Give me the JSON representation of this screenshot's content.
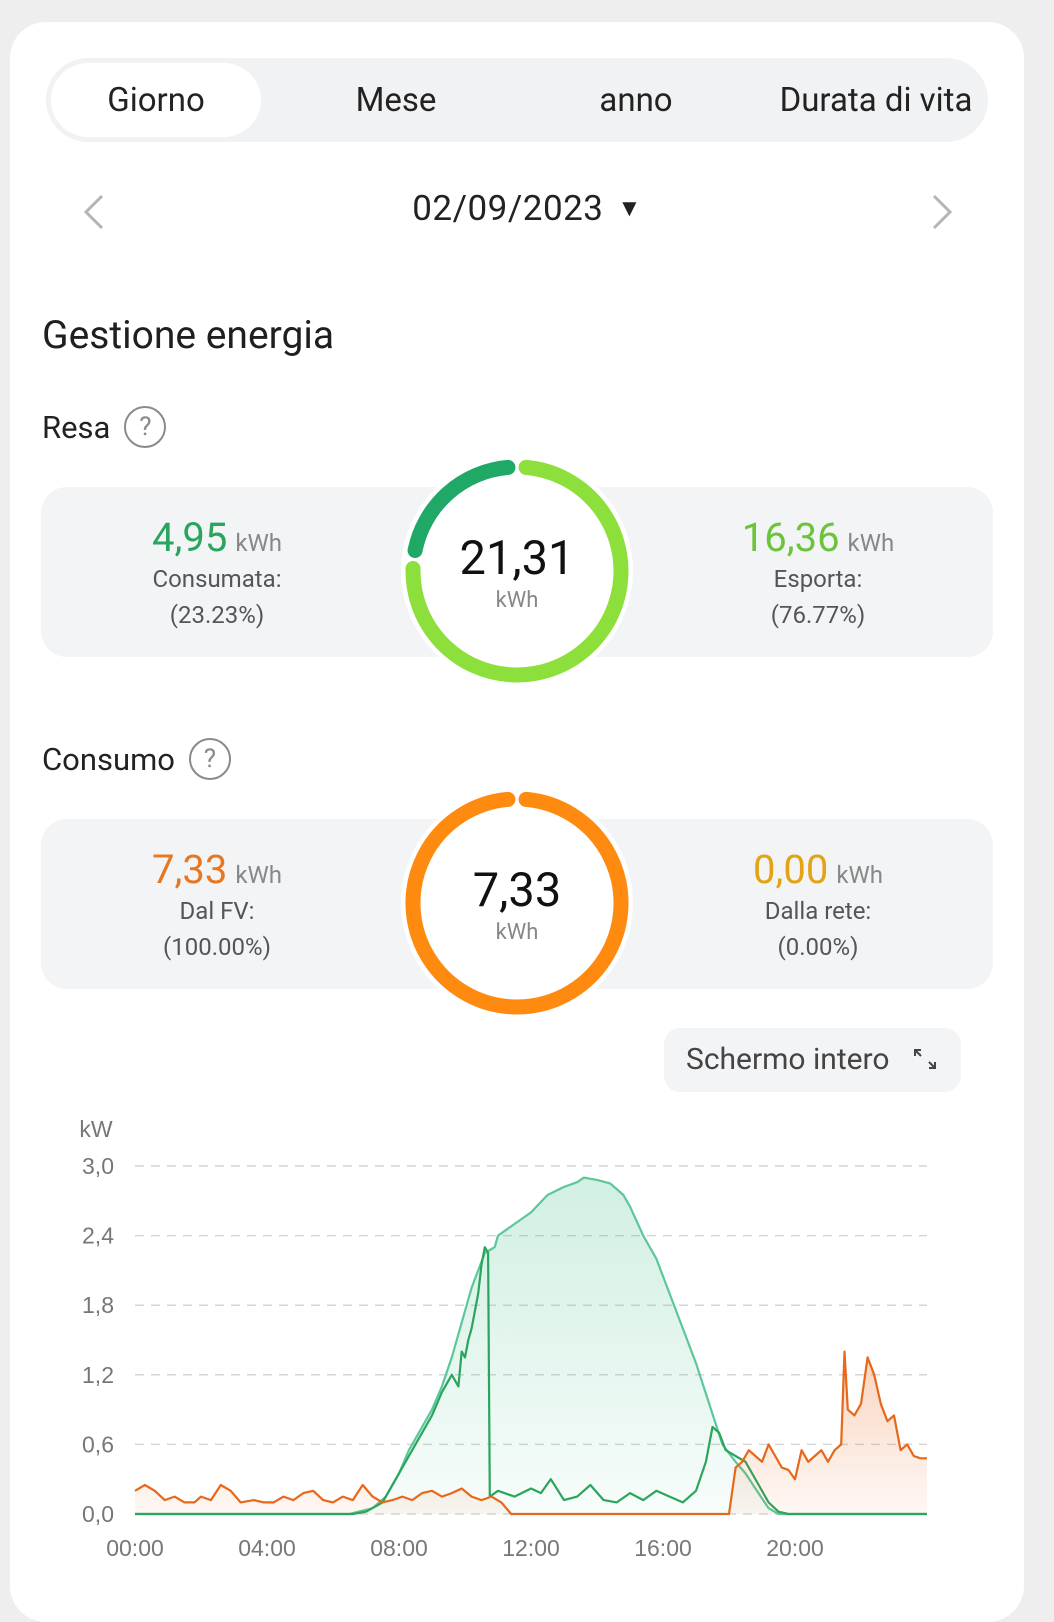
{
  "tabs": [
    "Giorno",
    "Mese",
    "anno",
    "Durata di vita"
  ],
  "active_tab": 0,
  "date": {
    "value": "02/09/2023"
  },
  "section_title": "Gestione energia",
  "resa": {
    "label": "Resa",
    "total_value": "21,31",
    "total_unit": "kWh",
    "left": {
      "value": "4,95",
      "unit": "kWh",
      "label": "Consumata:",
      "pct": "(23.23%)"
    },
    "right": {
      "value": "16,36",
      "unit": "kWh",
      "label": "Esporta:",
      "pct": "(76.77%)"
    },
    "colors": {
      "consumed": "#1fa866",
      "exported": "#8ddf3c",
      "left_text": "#2aa55e",
      "right_text": "#6cc43a"
    },
    "consumed_fraction": 0.2323
  },
  "consumo": {
    "label": "Consumo",
    "total_value": "7,33",
    "total_unit": "kWh",
    "left": {
      "value": "7,33",
      "unit": "kWh",
      "label": "Dal FV:",
      "pct": "(100.00%)"
    },
    "right": {
      "value": "0,00",
      "unit": "kWh",
      "label": "Dalla rete:",
      "pct": "(0.00%)"
    },
    "colors": {
      "pv": "#ff8a10",
      "grid": "#e8a91c",
      "left_text": "#e87722",
      "right_text": "#e3a315"
    },
    "pv_fraction": 1.0
  },
  "fullscreen_label": "Schermo intero",
  "chart_data": {
    "type": "line",
    "ylabel": "kW",
    "ylim": [
      0,
      3.0
    ],
    "yticks": [
      "3,0",
      "2,4",
      "1,8",
      "1,2",
      "0,6",
      "0,0"
    ],
    "xticks": [
      "00:00",
      "04:00",
      "08:00",
      "12:00",
      "16:00",
      "20:00"
    ],
    "xlim_hours": [
      0,
      24
    ],
    "grid": "dashed-horizontal",
    "series": [
      {
        "color": "#5cc79a",
        "fill": true,
        "points": [
          [
            0,
            0
          ],
          [
            6.5,
            0
          ],
          [
            7.2,
            0.05
          ],
          [
            7.6,
            0.15
          ],
          [
            8.0,
            0.35
          ],
          [
            8.3,
            0.55
          ],
          [
            8.6,
            0.7
          ],
          [
            9.0,
            0.9
          ],
          [
            9.3,
            1.1
          ],
          [
            9.6,
            1.35
          ],
          [
            9.8,
            1.55
          ],
          [
            10.0,
            1.75
          ],
          [
            10.2,
            1.95
          ],
          [
            10.4,
            2.1
          ],
          [
            10.6,
            2.25
          ],
          [
            10.9,
            2.3
          ],
          [
            11.0,
            2.4
          ],
          [
            11.5,
            2.5
          ],
          [
            12.0,
            2.6
          ],
          [
            12.5,
            2.75
          ],
          [
            13.0,
            2.82
          ],
          [
            13.4,
            2.86
          ],
          [
            13.6,
            2.9
          ],
          [
            14.0,
            2.88
          ],
          [
            14.4,
            2.85
          ],
          [
            14.8,
            2.75
          ],
          [
            15.0,
            2.65
          ],
          [
            15.4,
            2.4
          ],
          [
            15.8,
            2.2
          ],
          [
            16.2,
            1.9
          ],
          [
            16.6,
            1.6
          ],
          [
            17.0,
            1.3
          ],
          [
            17.4,
            0.95
          ],
          [
            17.8,
            0.6
          ],
          [
            18.2,
            0.45
          ],
          [
            18.5,
            0.35
          ],
          [
            18.8,
            0.22
          ],
          [
            19.2,
            0.05
          ],
          [
            19.5,
            0
          ],
          [
            24,
            0
          ]
        ]
      },
      {
        "color": "#2aa55e",
        "fill": false,
        "points": [
          [
            0,
            0
          ],
          [
            6.6,
            0
          ],
          [
            7.0,
            0.02
          ],
          [
            7.5,
            0.1
          ],
          [
            8.0,
            0.35
          ],
          [
            8.3,
            0.5
          ],
          [
            8.6,
            0.65
          ],
          [
            9.0,
            0.85
          ],
          [
            9.3,
            1.05
          ],
          [
            9.6,
            1.2
          ],
          [
            9.8,
            1.1
          ],
          [
            9.9,
            1.4
          ],
          [
            10.0,
            1.35
          ],
          [
            10.1,
            1.5
          ],
          [
            10.2,
            1.6
          ],
          [
            10.3,
            1.75
          ],
          [
            10.4,
            1.9
          ],
          [
            10.5,
            2.15
          ],
          [
            10.6,
            2.3
          ],
          [
            10.7,
            2.25
          ],
          [
            10.75,
            0.15
          ],
          [
            11.0,
            0.2
          ],
          [
            11.5,
            0.15
          ],
          [
            12.0,
            0.22
          ],
          [
            12.3,
            0.18
          ],
          [
            12.6,
            0.3
          ],
          [
            13.0,
            0.12
          ],
          [
            13.4,
            0.15
          ],
          [
            13.8,
            0.25
          ],
          [
            14.2,
            0.12
          ],
          [
            14.6,
            0.1
          ],
          [
            15.0,
            0.18
          ],
          [
            15.4,
            0.12
          ],
          [
            15.8,
            0.2
          ],
          [
            16.2,
            0.15
          ],
          [
            16.6,
            0.1
          ],
          [
            17.0,
            0.2
          ],
          [
            17.3,
            0.45
          ],
          [
            17.5,
            0.75
          ],
          [
            17.7,
            0.7
          ],
          [
            17.9,
            0.55
          ],
          [
            18.2,
            0.5
          ],
          [
            18.5,
            0.45
          ],
          [
            18.8,
            0.3
          ],
          [
            19.2,
            0.1
          ],
          [
            19.5,
            0.02
          ],
          [
            19.8,
            0
          ],
          [
            24,
            0
          ]
        ]
      },
      {
        "color": "#e8671a",
        "fill": true,
        "points": [
          [
            0,
            0.2
          ],
          [
            0.3,
            0.25
          ],
          [
            0.6,
            0.2
          ],
          [
            0.9,
            0.12
          ],
          [
            1.2,
            0.15
          ],
          [
            1.5,
            0.1
          ],
          [
            1.8,
            0.1
          ],
          [
            2.0,
            0.15
          ],
          [
            2.3,
            0.12
          ],
          [
            2.6,
            0.25
          ],
          [
            2.9,
            0.2
          ],
          [
            3.2,
            0.1
          ],
          [
            3.6,
            0.12
          ],
          [
            3.9,
            0.1
          ],
          [
            4.2,
            0.1
          ],
          [
            4.5,
            0.15
          ],
          [
            4.8,
            0.12
          ],
          [
            5.1,
            0.18
          ],
          [
            5.4,
            0.2
          ],
          [
            5.7,
            0.12
          ],
          [
            6.0,
            0.1
          ],
          [
            6.3,
            0.15
          ],
          [
            6.6,
            0.12
          ],
          [
            6.9,
            0.25
          ],
          [
            7.2,
            0.15
          ],
          [
            7.5,
            0.1
          ],
          [
            7.8,
            0.12
          ],
          [
            8.1,
            0.15
          ],
          [
            8.4,
            0.12
          ],
          [
            8.7,
            0.18
          ],
          [
            9.0,
            0.2
          ],
          [
            9.3,
            0.15
          ],
          [
            9.6,
            0.18
          ],
          [
            9.9,
            0.22
          ],
          [
            10.2,
            0.15
          ],
          [
            10.5,
            0.12
          ],
          [
            10.8,
            0.15
          ],
          [
            11.1,
            0.1
          ],
          [
            11.4,
            0
          ],
          [
            18.0,
            0
          ],
          [
            18.2,
            0.4
          ],
          [
            18.4,
            0.45
          ],
          [
            18.6,
            0.55
          ],
          [
            18.8,
            0.5
          ],
          [
            19.0,
            0.45
          ],
          [
            19.2,
            0.6
          ],
          [
            19.4,
            0.5
          ],
          [
            19.6,
            0.4
          ],
          [
            19.8,
            0.38
          ],
          [
            20.0,
            0.3
          ],
          [
            20.2,
            0.55
          ],
          [
            20.4,
            0.45
          ],
          [
            20.6,
            0.5
          ],
          [
            20.8,
            0.55
          ],
          [
            21.0,
            0.45
          ],
          [
            21.2,
            0.55
          ],
          [
            21.4,
            0.6
          ],
          [
            21.5,
            1.4
          ],
          [
            21.6,
            0.9
          ],
          [
            21.8,
            0.85
          ],
          [
            22.0,
            0.95
          ],
          [
            22.2,
            1.35
          ],
          [
            22.4,
            1.2
          ],
          [
            22.6,
            0.95
          ],
          [
            22.8,
            0.8
          ],
          [
            23.0,
            0.85
          ],
          [
            23.2,
            0.55
          ],
          [
            23.4,
            0.6
          ],
          [
            23.6,
            0.5
          ],
          [
            23.8,
            0.48
          ],
          [
            24,
            0.48
          ]
        ]
      }
    ]
  }
}
